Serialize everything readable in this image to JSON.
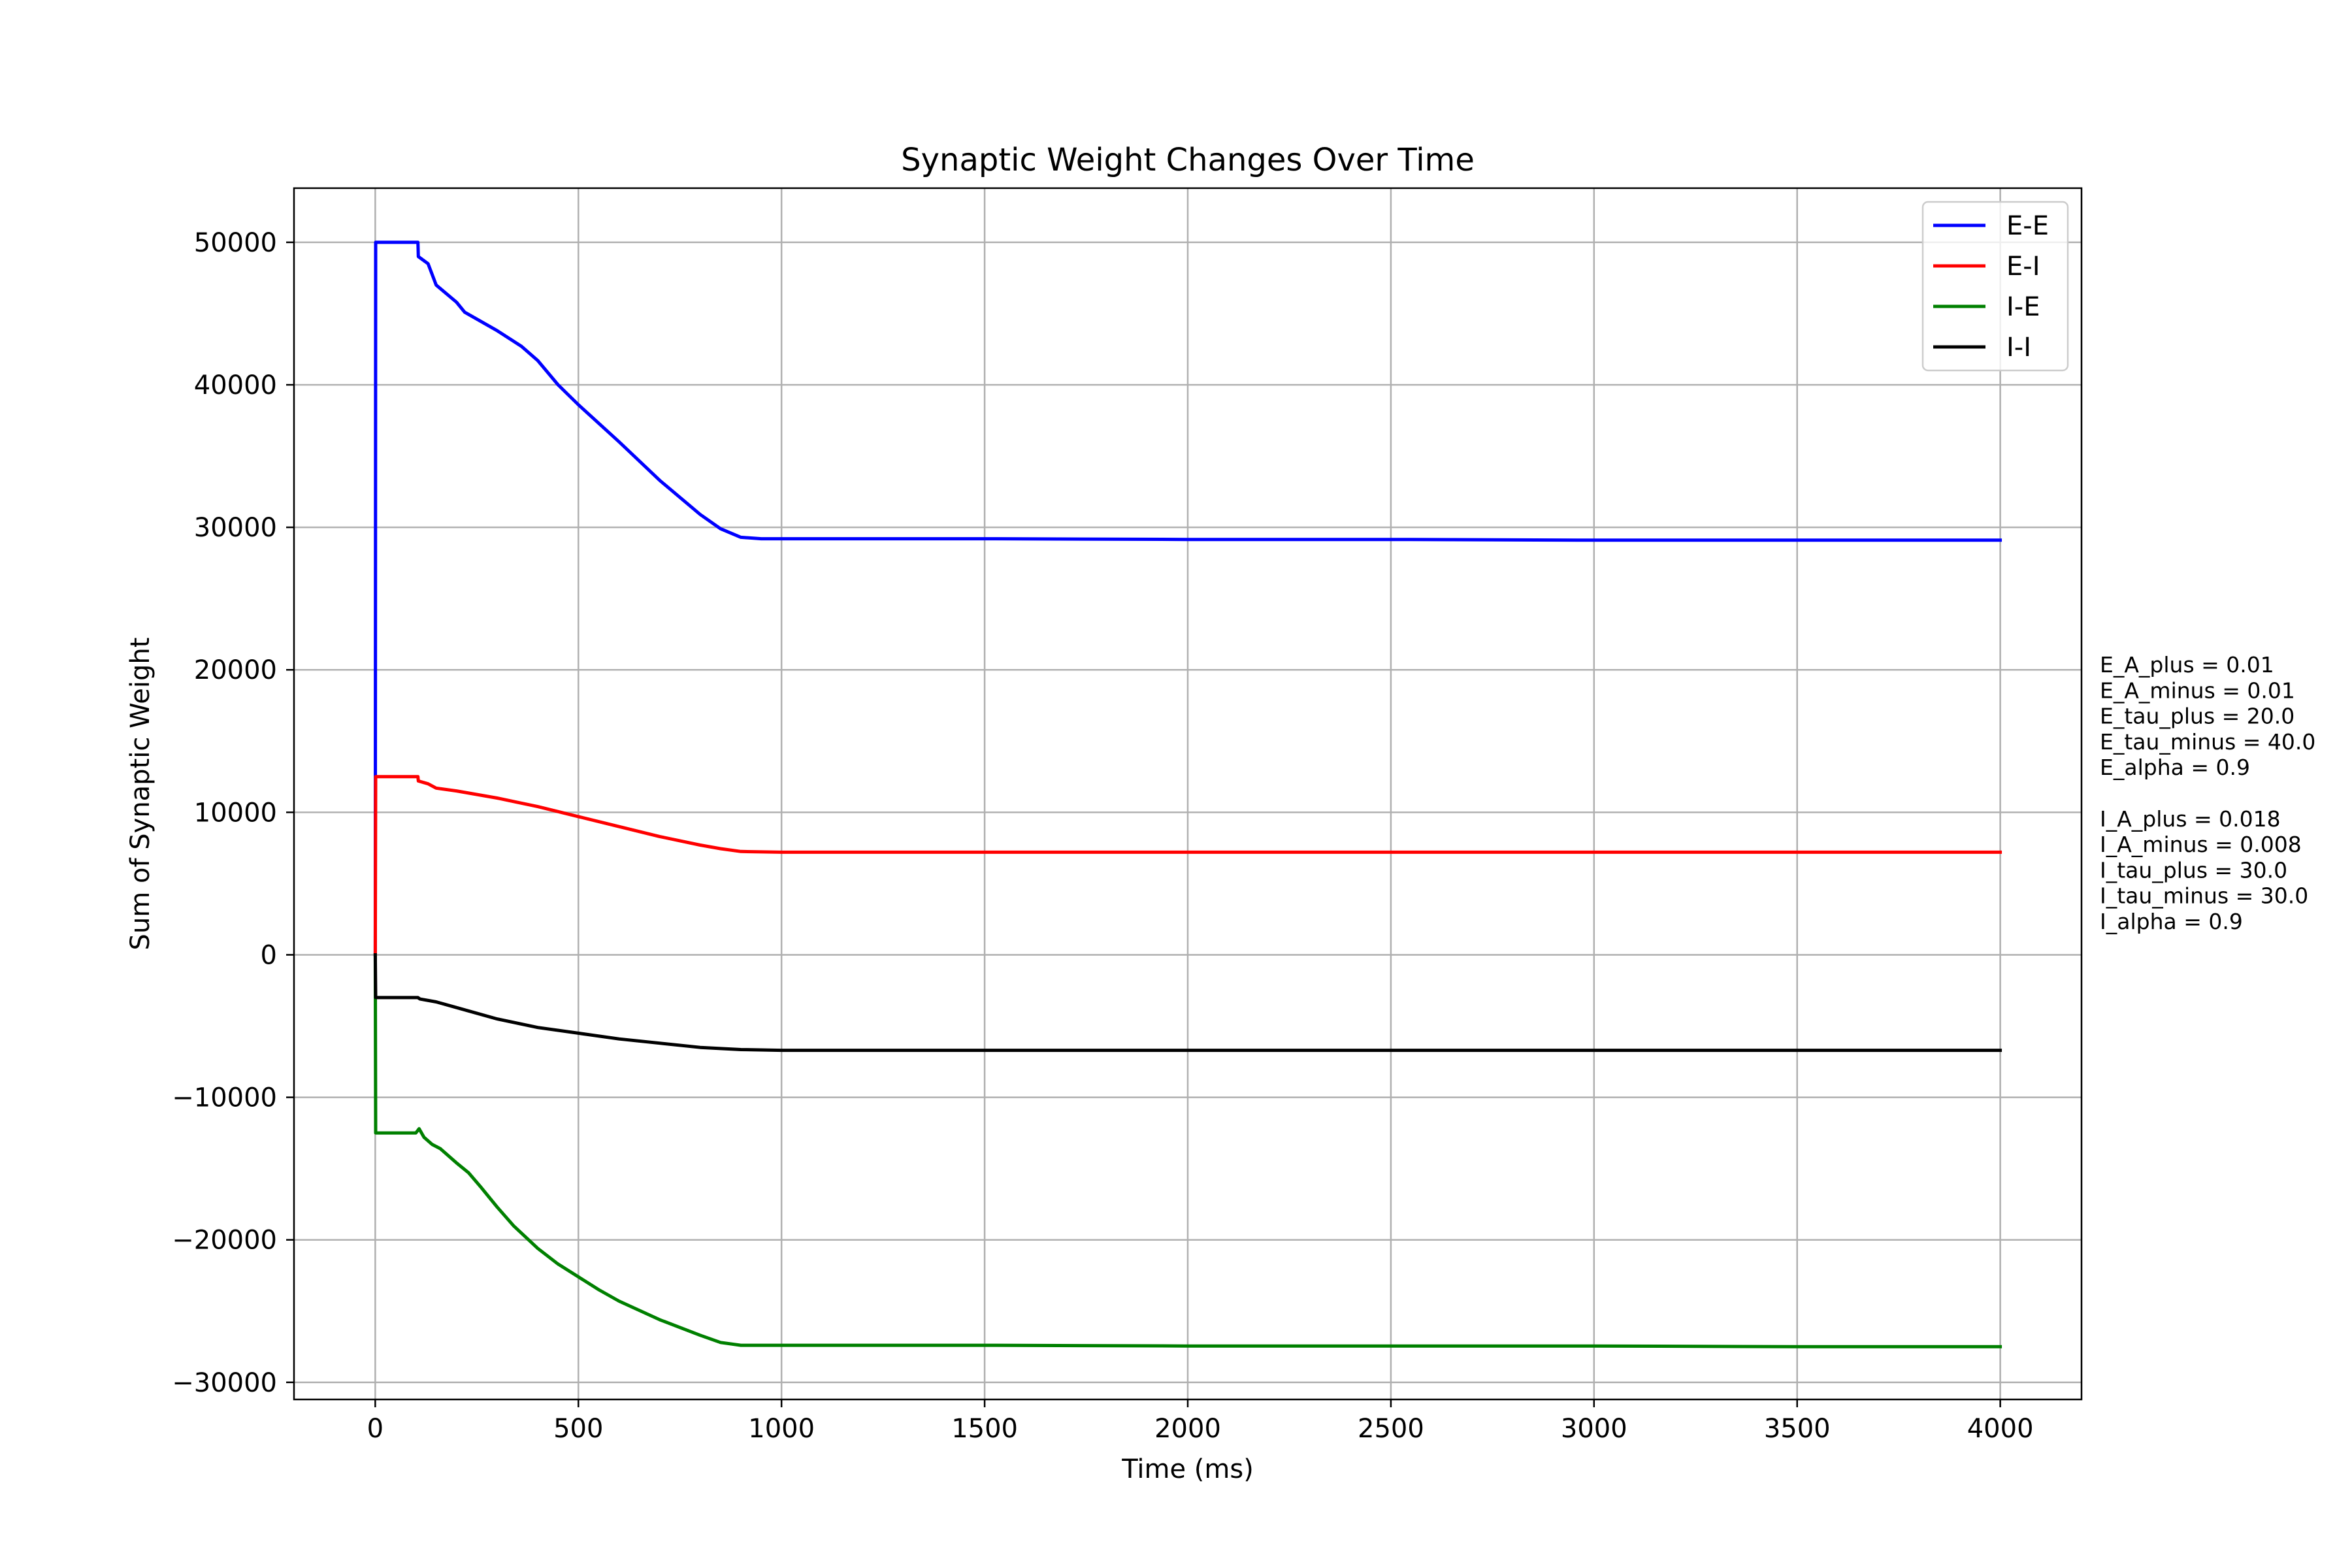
{
  "chart_data": {
    "type": "line",
    "title": "Synaptic Weight Changes Over Time",
    "xlabel": "Time (ms)",
    "ylabel": "Sum of Synaptic Weight",
    "xlim": [
      -200,
      4200
    ],
    "ylim": [
      -31200,
      53800
    ],
    "xticks": [
      0,
      500,
      1000,
      1500,
      2000,
      2500,
      3000,
      3500,
      4000
    ],
    "xtick_labels": [
      "0",
      "500",
      "1000",
      "1500",
      "2000",
      "2500",
      "3000",
      "3500",
      "4000"
    ],
    "yticks": [
      -30000,
      -20000,
      -10000,
      0,
      10000,
      20000,
      30000,
      40000,
      50000
    ],
    "ytick_labels": [
      "−30000",
      "−20000",
      "−10000",
      "0",
      "10000",
      "20000",
      "30000",
      "40000",
      "50000"
    ],
    "grid": true,
    "legend_position": "top-right",
    "series": [
      {
        "name": "E-E",
        "color": "#0000ff",
        "points": [
          [
            0,
            0
          ],
          [
            1,
            50000
          ],
          [
            105,
            50000
          ],
          [
            106,
            49000
          ],
          [
            130,
            48500
          ],
          [
            150,
            47000
          ],
          [
            200,
            45800
          ],
          [
            220,
            45100
          ],
          [
            300,
            43800
          ],
          [
            360,
            42700
          ],
          [
            400,
            41700
          ],
          [
            450,
            40000
          ],
          [
            500,
            38600
          ],
          [
            600,
            36000
          ],
          [
            700,
            33300
          ],
          [
            800,
            30900
          ],
          [
            850,
            29900
          ],
          [
            900,
            29300
          ],
          [
            950,
            29200
          ],
          [
            1000,
            29200
          ],
          [
            1500,
            29200
          ],
          [
            2000,
            29150
          ],
          [
            2500,
            29150
          ],
          [
            3000,
            29100
          ],
          [
            3500,
            29100
          ],
          [
            4000,
            29100
          ]
        ]
      },
      {
        "name": "E-I",
        "color": "#ff0000",
        "points": [
          [
            0,
            0
          ],
          [
            1,
            12500
          ],
          [
            105,
            12500
          ],
          [
            106,
            12200
          ],
          [
            130,
            12000
          ],
          [
            150,
            11700
          ],
          [
            200,
            11500
          ],
          [
            300,
            11000
          ],
          [
            350,
            10700
          ],
          [
            400,
            10400
          ],
          [
            500,
            9700
          ],
          [
            600,
            9000
          ],
          [
            700,
            8300
          ],
          [
            800,
            7700
          ],
          [
            850,
            7450
          ],
          [
            900,
            7250
          ],
          [
            1000,
            7200
          ],
          [
            2000,
            7200
          ],
          [
            3000,
            7200
          ],
          [
            4000,
            7200
          ]
        ]
      },
      {
        "name": "I-E",
        "color": "#008000",
        "points": [
          [
            0,
            0
          ],
          [
            1,
            -12500
          ],
          [
            100,
            -12500
          ],
          [
            108,
            -12200
          ],
          [
            120,
            -12800
          ],
          [
            140,
            -13300
          ],
          [
            160,
            -13600
          ],
          [
            200,
            -14600
          ],
          [
            230,
            -15300
          ],
          [
            260,
            -16300
          ],
          [
            300,
            -17700
          ],
          [
            340,
            -19000
          ],
          [
            400,
            -20600
          ],
          [
            450,
            -21700
          ],
          [
            500,
            -22600
          ],
          [
            550,
            -23500
          ],
          [
            600,
            -24300
          ],
          [
            700,
            -25600
          ],
          [
            800,
            -26700
          ],
          [
            850,
            -27200
          ],
          [
            900,
            -27400
          ],
          [
            1000,
            -27400
          ],
          [
            1500,
            -27400
          ],
          [
            2000,
            -27450
          ],
          [
            2500,
            -27450
          ],
          [
            3000,
            -27450
          ],
          [
            3500,
            -27500
          ],
          [
            4000,
            -27500
          ]
        ]
      },
      {
        "name": "I-I",
        "color": "#000000",
        "points": [
          [
            0,
            0
          ],
          [
            1,
            -3000
          ],
          [
            105,
            -3000
          ],
          [
            110,
            -3100
          ],
          [
            150,
            -3300
          ],
          [
            200,
            -3700
          ],
          [
            300,
            -4500
          ],
          [
            400,
            -5100
          ],
          [
            500,
            -5500
          ],
          [
            600,
            -5900
          ],
          [
            700,
            -6200
          ],
          [
            800,
            -6500
          ],
          [
            900,
            -6650
          ],
          [
            1000,
            -6700
          ],
          [
            2000,
            -6700
          ],
          [
            3000,
            -6700
          ],
          [
            4000,
            -6700
          ]
        ]
      }
    ],
    "parameters": [
      "E_A_plus = 0.01",
      "E_A_minus = 0.01",
      "E_tau_plus = 20.0",
      "E_tau_minus = 40.0",
      "E_alpha = 0.9",
      "",
      "I_A_plus = 0.018",
      "I_A_minus = 0.008",
      "I_tau_plus = 30.0",
      "I_tau_minus = 30.0",
      "I_alpha = 0.9"
    ]
  }
}
